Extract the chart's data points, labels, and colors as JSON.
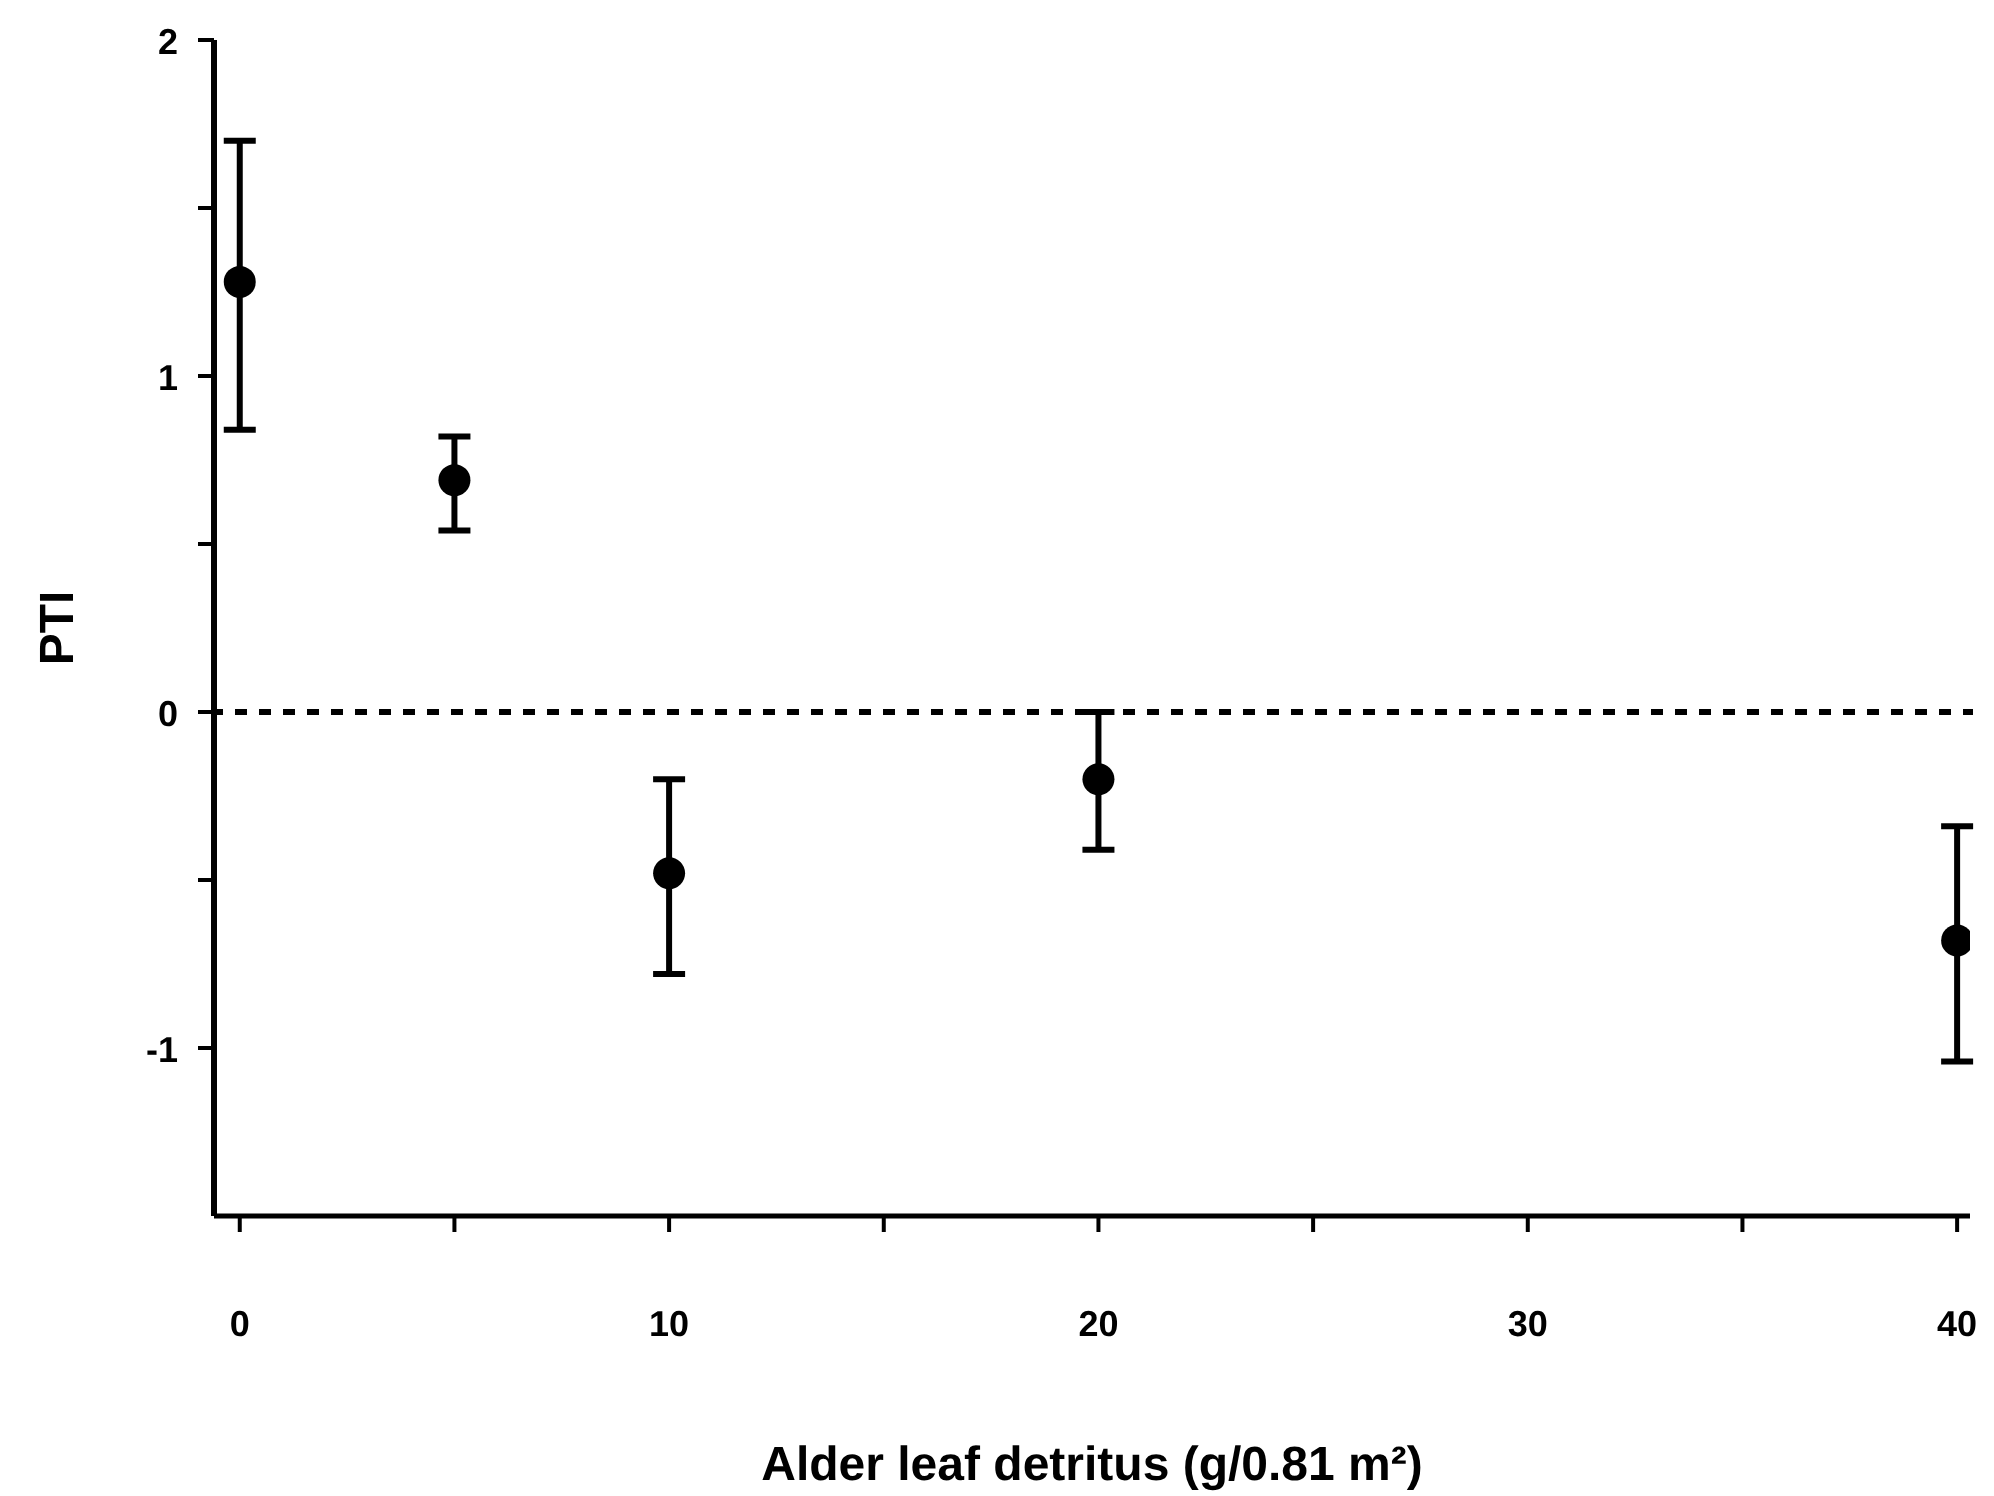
{
  "chart_data": {
    "type": "scatter",
    "xlabel": "Alder leaf detritus (g/0.81 m²)",
    "ylabel": "PTI",
    "x": [
      0,
      5,
      10,
      20,
      40
    ],
    "series": [
      {
        "color": "#000000",
        "values": [
          1.28,
          0.69,
          -0.48,
          -0.2,
          -0.68
        ],
        "errors": [
          [
            0.84,
            1.7
          ],
          [
            0.54,
            0.82
          ],
          [
            -0.78,
            -0.2
          ],
          [
            -0.41,
            0
          ],
          [
            -1.04,
            -0.34
          ]
        ]
      }
    ],
    "xlim": [
      -0.6,
      40.3
    ],
    "xticks": [
      0,
      {
        "value": 5,
        "label": null
      },
      10,
      {
        "value": 15,
        "label": null
      },
      20,
      {
        "value": 25,
        "label": null
      },
      30,
      {
        "value": 35,
        "label": null
      },
      40
    ],
    "ylim": [
      -1.5,
      2
    ],
    "yticks": [
      -1,
      {
        "value": -0.5,
        "label": null
      },
      0,
      {
        "value": 0.5,
        "label": null
      },
      1,
      {
        "value": 1.5,
        "label": null
      },
      2
    ],
    "ref_lines": [
      {
        "axis": "y",
        "value": 0,
        "line_style": "dotted",
        "color": "#000000"
      }
    ],
    "marker": "circle",
    "grid": false,
    "legend": false
  }
}
